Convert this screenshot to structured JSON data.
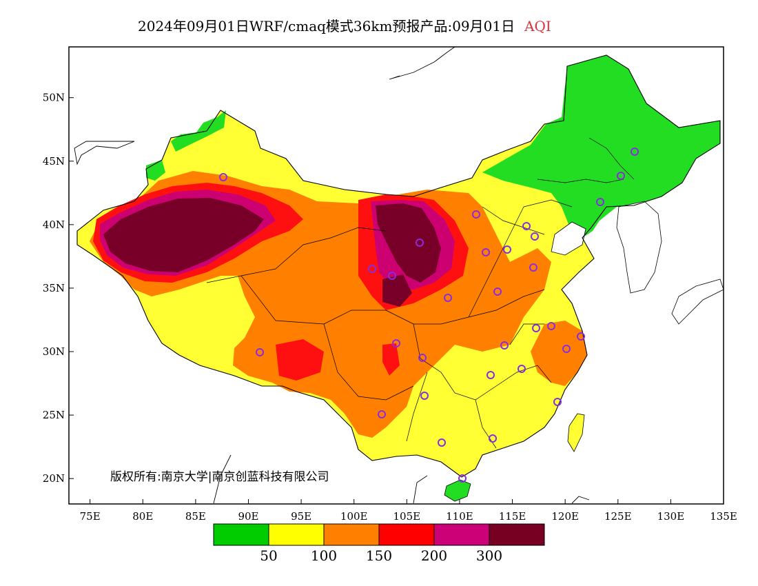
{
  "title": {
    "main": "2024年09月01日WRF/cmaq模式36km预报产品:09月01日",
    "variable": "AQI",
    "variable_color": "#e0323a"
  },
  "map": {
    "lon_range": [
      73,
      135
    ],
    "lat_range": [
      18,
      54
    ],
    "x_ticks": [
      "75E",
      "80E",
      "85E",
      "90E",
      "95E",
      "100E",
      "105E",
      "110E",
      "115E",
      "120E",
      "125E",
      "130E",
      "135E"
    ],
    "y_ticks": [
      "20N",
      "25N",
      "30N",
      "35N",
      "40N",
      "45N",
      "50N"
    ],
    "copyright": "版权所有:南京大学|南京创蓝科技有限公司"
  },
  "legend": {
    "colors": [
      "#00cc00",
      "#ffff00",
      "#ff7f00",
      "#ff0000",
      "#cc0077",
      "#770022"
    ],
    "labels": [
      "50",
      "100",
      "150",
      "200",
      "300"
    ]
  },
  "colors": {
    "good": "#22dd22",
    "moderate": "#ffff33",
    "unhealthy_sensitive": "#ff8000",
    "unhealthy": "#ff1010",
    "very_unhealthy": "#cc0070",
    "hazardous": "#780028",
    "station_marker": "#8a2be2"
  }
}
